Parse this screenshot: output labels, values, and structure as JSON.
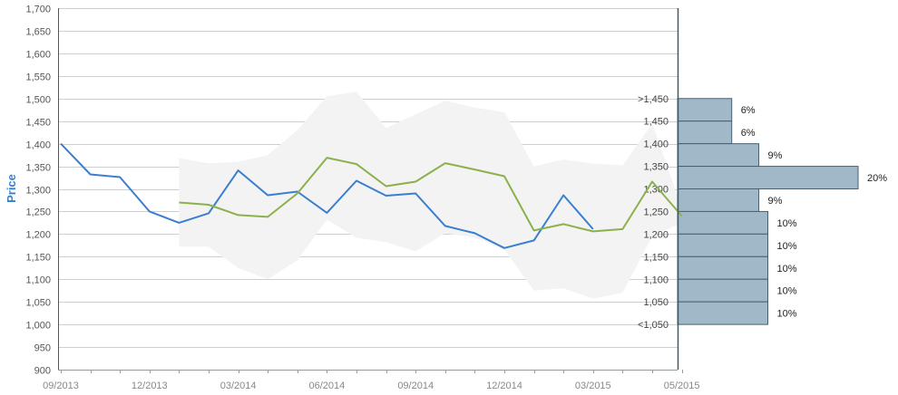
{
  "chart_data": {
    "type": "line",
    "ylabel": "Price",
    "ylim": [
      900,
      1700
    ],
    "yticks": [
      900,
      950,
      1000,
      1050,
      1100,
      1150,
      1200,
      1250,
      1300,
      1350,
      1400,
      1450,
      1500,
      1550,
      1600,
      1650,
      1700
    ],
    "ytick_labels": [
      "900",
      "950",
      "1,000",
      "1,050",
      "1,100",
      "1,150",
      "1,200",
      "1,250",
      "1,300",
      "1,350",
      "1,400",
      "1,450",
      "1,500",
      "1,550",
      "1,600",
      "1,650",
      "1,700"
    ],
    "xtick_labels": [
      "09/2013",
      "12/2013",
      "03/2014",
      "06/2014",
      "09/2014",
      "12/2014",
      "03/2015",
      "05/2015"
    ],
    "xtick_index": [
      0,
      3,
      6,
      9,
      12,
      15,
      18,
      21
    ],
    "grid": true,
    "series": [
      {
        "role": "blue",
        "color": "#3a7fcf",
        "x_index": [
          0,
          1,
          2,
          3,
          4,
          5,
          6,
          7,
          8,
          9,
          10,
          11,
          12,
          13,
          14,
          15,
          16,
          17,
          18
        ],
        "values": [
          1400,
          1332,
          1326,
          1250,
          1225,
          1246,
          1341,
          1286,
          1294,
          1247,
          1318,
          1285,
          1290,
          1218,
          1202,
          1169,
          1186,
          1286,
          1211
        ]
      },
      {
        "role": "green",
        "color": "#8cb04b",
        "x_index": [
          4,
          5,
          6,
          7,
          8,
          9,
          10,
          11,
          12,
          13,
          14,
          15,
          16,
          17,
          18,
          19,
          20,
          21
        ],
        "values": [
          1270,
          1265,
          1242,
          1238,
          1290,
          1369,
          1355,
          1306,
          1316,
          1357,
          1343,
          1328,
          1208,
          1222,
          1206,
          1211,
          1316,
          1240
        ]
      }
    ],
    "band": {
      "color": "#f3f3f3",
      "x_index": [
        4,
        5,
        6,
        7,
        8,
        9,
        10,
        11,
        12,
        13,
        14,
        15,
        16,
        17,
        18,
        19,
        20,
        21
      ],
      "upper": [
        1368,
        1357,
        1360,
        1375,
        1430,
        1505,
        1515,
        1435,
        1465,
        1495,
        1480,
        1470,
        1350,
        1365,
        1356,
        1352,
        1445,
        1257
      ],
      "lower": [
        1172,
        1172,
        1125,
        1100,
        1142,
        1232,
        1192,
        1182,
        1162,
        1202,
        1192,
        1166,
        1075,
        1080,
        1057,
        1070,
        1195,
        1225
      ]
    },
    "distribution": {
      "color": "#a0b8c8",
      "bins": [
        {
          "label": ">1,450",
          "percent_label": "6%",
          "percent": 6
        },
        {
          "label": "1,450",
          "percent_label": "6%",
          "percent": 6
        },
        {
          "label": "1,400",
          "percent_label": "9%",
          "percent": 9
        },
        {
          "label": "1,350",
          "percent_label": "20%",
          "percent": 20
        },
        {
          "label": "1,300",
          "percent_label": "9%",
          "percent": 9
        },
        {
          "label": "1,250",
          "percent_label": "10%",
          "percent": 10
        },
        {
          "label": "1,200",
          "percent_label": "10%",
          "percent": 10
        },
        {
          "label": "1,150",
          "percent_label": "10%",
          "percent": 10
        },
        {
          "label": "1,100",
          "percent_label": "10%",
          "percent": 10
        },
        {
          "label": "1,050",
          "percent_label": "10%",
          "percent": 10
        },
        {
          "label": "<1,050",
          "percent_label": "",
          "percent": 0
        }
      ]
    }
  }
}
